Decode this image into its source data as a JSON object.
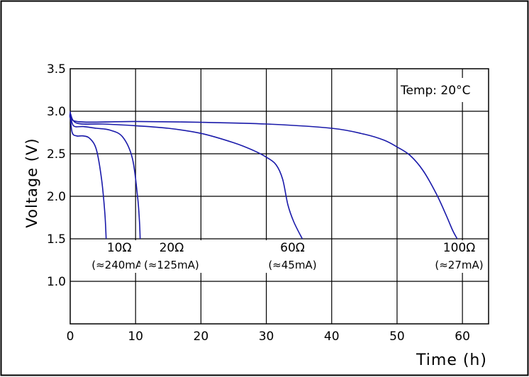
{
  "chart_data": {
    "type": "line",
    "title": "",
    "xlabel": "Time  (h)",
    "ylabel": "Voltage  (V)",
    "xlim": [
      0,
      64
    ],
    "ylim": [
      0.5,
      3.5
    ],
    "xticks": [
      0,
      10,
      20,
      30,
      40,
      50,
      60
    ],
    "xtick_labels": [
      "0",
      "10",
      "20",
      "30",
      "40",
      "50",
      "60"
    ],
    "yticks": [
      1.0,
      1.5,
      2.0,
      2.5,
      3.0,
      3.5
    ],
    "ytick_labels": [
      "1.0",
      "1.5",
      "2.0",
      "2.5",
      "3.0",
      "3.5"
    ],
    "grid": true,
    "line_color": "#1a1aaa",
    "annotation": "Temp: 20°C",
    "series": [
      {
        "name": "10Ω",
        "current": "(≈240mA)",
        "points": [
          [
            0,
            2.95
          ],
          [
            0.3,
            2.75
          ],
          [
            1,
            2.71
          ],
          [
            2,
            2.71
          ],
          [
            3,
            2.68
          ],
          [
            4,
            2.55
          ],
          [
            4.8,
            2.2
          ],
          [
            5.3,
            1.8
          ],
          [
            5.5,
            1.5
          ]
        ]
      },
      {
        "name": "20Ω",
        "current": "(≈125mA)",
        "points": [
          [
            0,
            2.97
          ],
          [
            0.5,
            2.83
          ],
          [
            2,
            2.82
          ],
          [
            4,
            2.8
          ],
          [
            6,
            2.78
          ],
          [
            8,
            2.7
          ],
          [
            9.5,
            2.45
          ],
          [
            10.3,
            2.0
          ],
          [
            10.6,
            1.7
          ],
          [
            10.7,
            1.5
          ]
        ]
      },
      {
        "name": "60Ω",
        "current": "(≈45mA)",
        "points": [
          [
            0,
            2.98
          ],
          [
            1,
            2.86
          ],
          [
            5,
            2.85
          ],
          [
            10,
            2.83
          ],
          [
            15,
            2.8
          ],
          [
            20,
            2.74
          ],
          [
            25,
            2.63
          ],
          [
            28,
            2.54
          ],
          [
            30,
            2.46
          ],
          [
            31.5,
            2.37
          ],
          [
            32.5,
            2.2
          ],
          [
            33.3,
            1.9
          ],
          [
            34.2,
            1.7
          ],
          [
            35.5,
            1.5
          ]
        ]
      },
      {
        "name": "100Ω",
        "current": "(≈27mA)",
        "points": [
          [
            0,
            3.0
          ],
          [
            1,
            2.88
          ],
          [
            10,
            2.88
          ],
          [
            20,
            2.87
          ],
          [
            30,
            2.85
          ],
          [
            40,
            2.8
          ],
          [
            45,
            2.73
          ],
          [
            48,
            2.66
          ],
          [
            50,
            2.58
          ],
          [
            52,
            2.48
          ],
          [
            54,
            2.3
          ],
          [
            56,
            2.03
          ],
          [
            57.5,
            1.78
          ],
          [
            58.5,
            1.6
          ],
          [
            59.2,
            1.5
          ]
        ]
      }
    ],
    "series_labels": [
      {
        "name": "10Ω",
        "current": "(≈240mA)",
        "x": 7.5,
        "y_name": 1.35,
        "y_current": 1.15
      },
      {
        "name": "20Ω",
        "current": "(≈125mA)",
        "x": 15.5,
        "y_name": 1.35,
        "y_current": 1.15
      },
      {
        "name": "60Ω",
        "current": "(≈45mA)",
        "x": 34,
        "y_name": 1.35,
        "y_current": 1.15
      },
      {
        "name": "100Ω",
        "current": "(≈27mA)",
        "x": 59.5,
        "y_name": 1.35,
        "y_current": 1.15
      }
    ]
  }
}
